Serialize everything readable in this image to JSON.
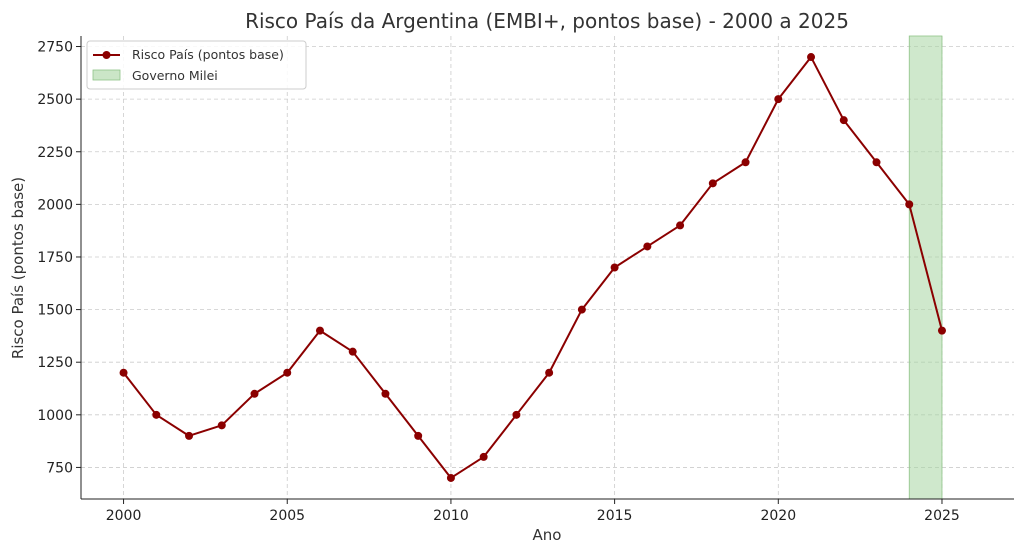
{
  "chart_data": {
    "type": "line",
    "title": "Risco País da Argentina (EMBI+, pontos base) - 2000 a 2025",
    "xlabel": "Ano",
    "ylabel": "Risco País (pontos base)",
    "xlim": [
      1998.7,
      2027.2
    ],
    "ylim": [
      600,
      2800
    ],
    "x_ticks": [
      2000,
      2005,
      2010,
      2015,
      2020,
      2025
    ],
    "y_ticks": [
      750,
      1000,
      1250,
      1500,
      1750,
      2000,
      2250,
      2500,
      2750
    ],
    "grid": true,
    "legend_position": "top-left",
    "series": [
      {
        "name": "Risco País (pontos base)",
        "color": "#8b0000",
        "x": [
          2000,
          2001,
          2002,
          2003,
          2004,
          2005,
          2006,
          2007,
          2008,
          2009,
          2010,
          2011,
          2012,
          2013,
          2014,
          2015,
          2016,
          2017,
          2018,
          2019,
          2020,
          2021,
          2022,
          2023,
          2024,
          2025
        ],
        "y": [
          1200,
          1000,
          900,
          950,
          1100,
          1200,
          1400,
          1300,
          1100,
          900,
          700,
          800,
          1000,
          1200,
          1500,
          1700,
          1800,
          1900,
          2100,
          2200,
          2500,
          2700,
          2400,
          2200,
          2000,
          1400
        ]
      }
    ],
    "shaded_region": {
      "name": "Governo Milei",
      "x_start": 2024,
      "x_end": 2025,
      "y_start": 600,
      "y_end": 2800,
      "color": "#a8d5a2"
    }
  }
}
